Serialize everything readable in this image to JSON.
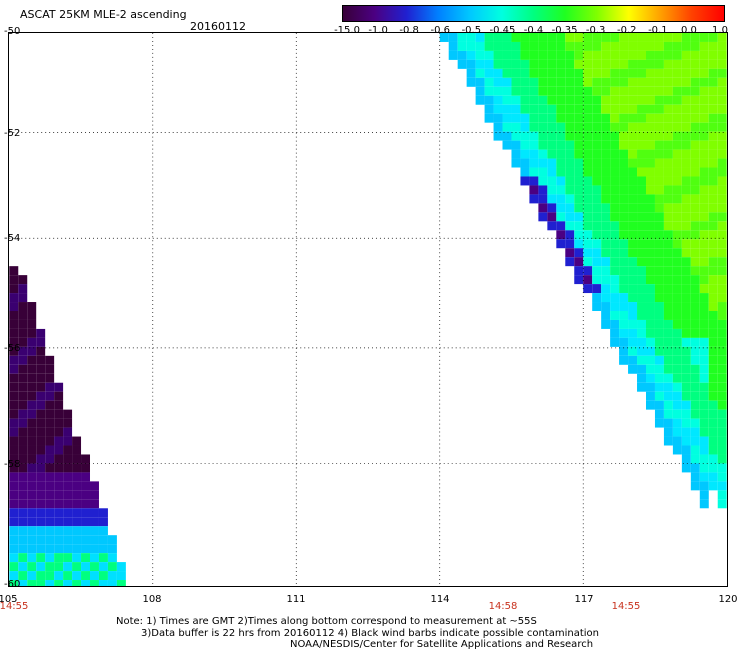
{
  "header": {
    "title": "ASCAT 25KM MLE-2 ascending",
    "date": "20160112"
  },
  "colorbar": {
    "labels": [
      "-15.0",
      "-1.0",
      "-0.8",
      "-0.6",
      "-0.5",
      "-0.45",
      "-0.4",
      "-0.35",
      "-0.3",
      "-0.2",
      "-0.1",
      "0.0",
      "1.0"
    ],
    "colors": [
      "#380038",
      "#4b0082",
      "#2020d0",
      "#0080ff",
      "#00c8ff",
      "#00ffe0",
      "#00ff80",
      "#20ff20",
      "#80ff00",
      "#ffff00",
      "#ffa000",
      "#ff4000",
      "#ff0000"
    ]
  },
  "map": {
    "lat_labels": [
      "-50",
      "-52",
      "-54",
      "-56",
      "-58",
      "-60"
    ],
    "lon_labels": [
      "105",
      "108",
      "111",
      "114",
      "117",
      "120"
    ],
    "time_labels": [
      "14:55",
      "14:58",
      "14:55"
    ],
    "lon_range": [
      105,
      120
    ],
    "lat_range": [
      -60,
      -50
    ]
  },
  "notes": {
    "line1": "Note: 1) Times are GMT 2)Times along bottom correspond to measurement at ~55S",
    "line2": "3)Data buffer is 22 hrs from 20160112 4) Black wind barbs indicate possible contamination",
    "line3": "NOAA/NESDIS/Center for Satellite Applications and Research"
  }
}
